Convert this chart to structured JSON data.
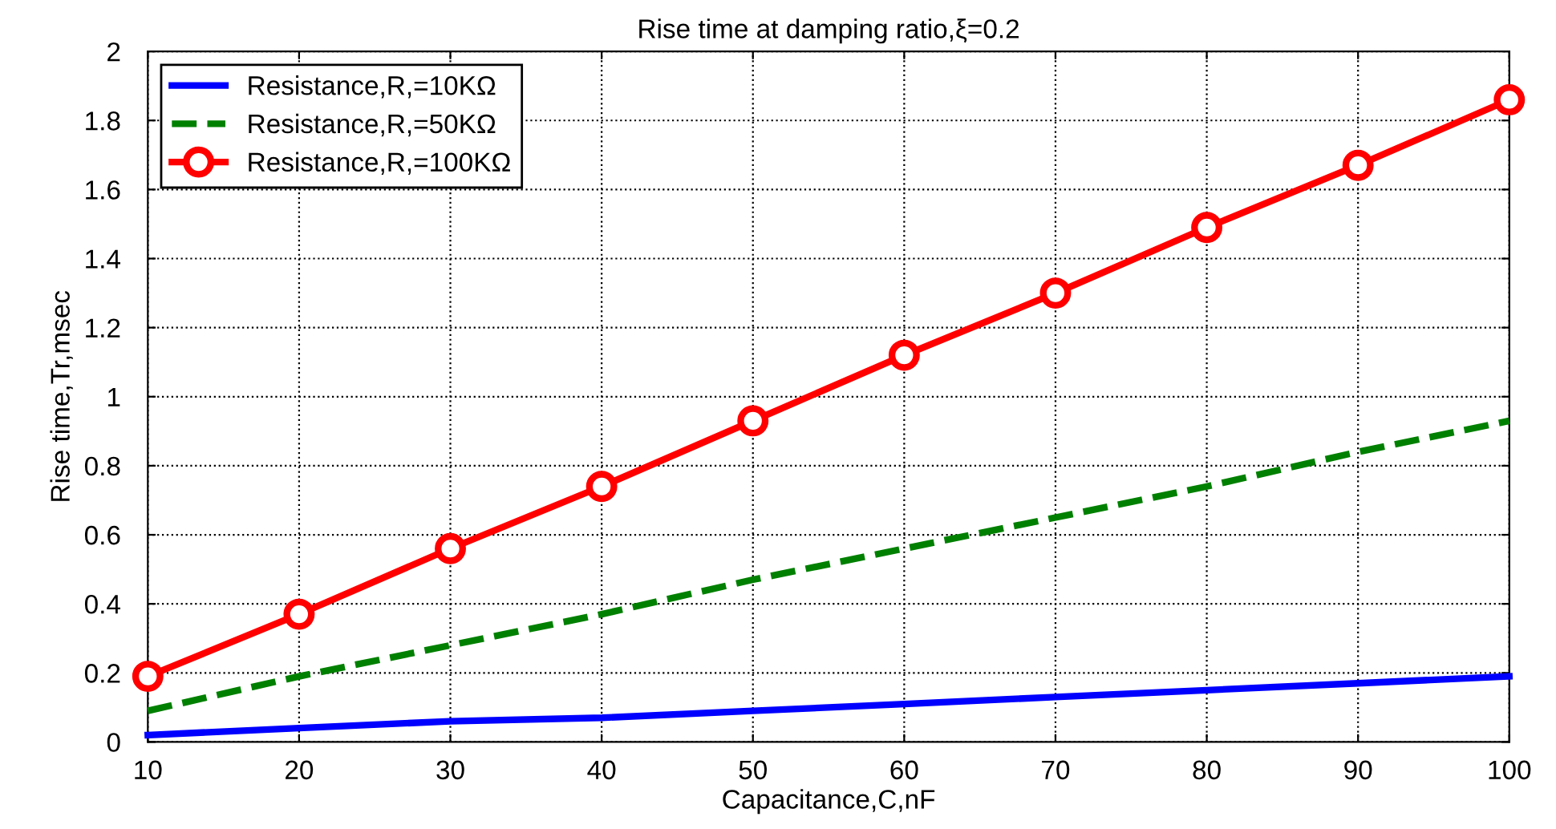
{
  "chart_data": {
    "type": "line",
    "title": "Rise time at damping ratio,ξ=0.2",
    "xlabel": "Capacitance,C,nF",
    "ylabel": "Rise time,Tr,msec",
    "x": [
      10,
      20,
      30,
      40,
      50,
      60,
      70,
      80,
      90,
      100
    ],
    "series": [
      {
        "name": "Resistance,R,=10KΩ",
        "color": "#0000ff",
        "line_style": "solid",
        "marker": "none",
        "values": [
          0.02,
          0.04,
          0.06,
          0.07,
          0.09,
          0.11,
          0.13,
          0.15,
          0.17,
          0.19
        ]
      },
      {
        "name": "Resistance,R,=50KΩ",
        "color": "#008000",
        "line_style": "dashed",
        "marker": "none",
        "values": [
          0.09,
          0.19,
          0.28,
          0.37,
          0.47,
          0.56,
          0.65,
          0.74,
          0.84,
          0.93
        ]
      },
      {
        "name": "Resistance,R,=100KΩ",
        "color": "#ff0000",
        "line_style": "solid",
        "marker": "circle",
        "values": [
          0.19,
          0.37,
          0.56,
          0.74,
          0.93,
          1.12,
          1.3,
          1.49,
          1.67,
          1.86
        ]
      }
    ],
    "xlim": [
      10,
      100
    ],
    "xticks": [
      10,
      20,
      30,
      40,
      50,
      60,
      70,
      80,
      90,
      100
    ],
    "ylim": [
      0,
      2
    ],
    "yticks": [
      0,
      0.2,
      0.4,
      0.6,
      0.8,
      1,
      1.2,
      1.4,
      1.6,
      1.8,
      2
    ],
    "grid": true,
    "legend": "top left"
  }
}
